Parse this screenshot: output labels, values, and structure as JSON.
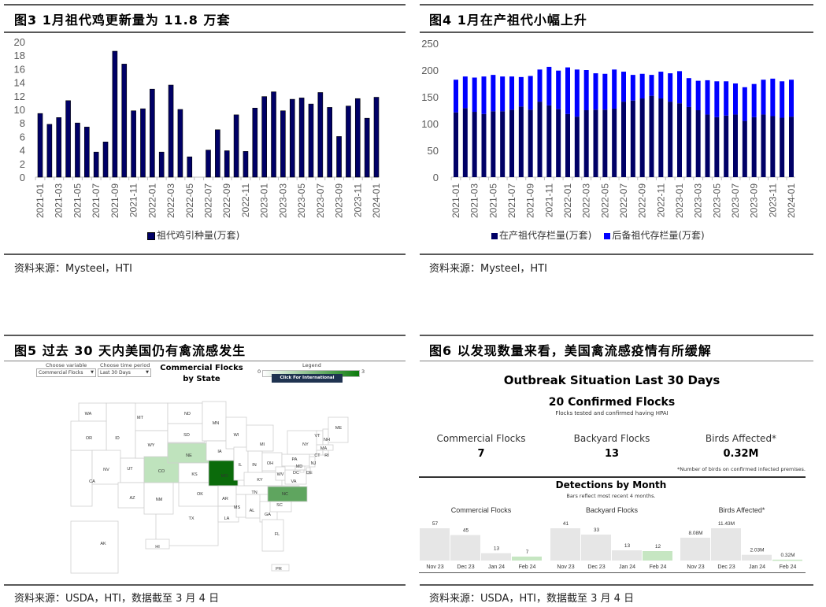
{
  "fig3": {
    "title": "图3  1月祖代鸡更新量为 11.8 万套",
    "legend": "祖代鸡引种量(万套)",
    "source": "资料来源：Mysteel，HTI"
  },
  "fig4": {
    "title": "图4  1月在产祖代小幅上升",
    "legend": [
      "在产祖代存栏量(万套)",
      "后备祖代存栏量(万套)"
    ],
    "source": "资料来源：Mysteel，HTI"
  },
  "fig5": {
    "title": "图5  过去 30 天内美国仍有禽流感发生",
    "source": "资料来源：USDA，HTI，数据截至 3 月 4 日",
    "choose_variable_label": "Choose variable",
    "choose_variable_value": "Commercial Flocks",
    "choose_period_label": "Choose time period",
    "choose_period_value": "Last 30 Days",
    "map_title_1": "Commercial Flocks",
    "map_title_2": "by State",
    "legend_label": "Legend",
    "legend_min": "0",
    "legend_max": "3",
    "export_button": "Click For International Exports"
  },
  "fig6": {
    "title": "图6  以发现数量来看，美国禽流感疫情有所缓解",
    "source": "资料来源：USDA，HTI，数据截至 3 月 4 日",
    "heading": "Outbreak Situation Last 30 Days",
    "confirmed": "20 Confirmed Flocks",
    "confirmed_sub": "Flocks tested and confirmed having HPAI",
    "stats": [
      {
        "label": "Commercial Flocks",
        "value": "7"
      },
      {
        "label": "Backyard Flocks",
        "value": "13"
      },
      {
        "label": "Birds Affected*",
        "value": "0.32M"
      }
    ],
    "footnote": "*Number of birds on confirmed infected premises.",
    "detections_title": "Detections by Month",
    "detections_sub": "Bars reflect most recent 4 months."
  },
  "chart_data": [
    {
      "type": "bar",
      "title": "1月祖代鸡更新量为 11.8 万套",
      "ylim": [
        0,
        20
      ],
      "yticks": [
        "0",
        "2",
        "4",
        "6",
        "8",
        "10",
        "12",
        "14",
        "16",
        "18",
        "20"
      ],
      "categories": [
        "2021-01",
        "2021-02",
        "2021-03",
        "2021-04",
        "2021-05",
        "2021-06",
        "2021-07",
        "2021-08",
        "2021-09",
        "2021-10",
        "2021-11",
        "2021-12",
        "2022-01",
        "2022-02",
        "2022-03",
        "2022-04",
        "2022-05",
        "2022-06",
        "2022-07",
        "2022-08",
        "2022-09",
        "2022-10",
        "2022-11",
        "2022-12",
        "2023-01",
        "2023-02",
        "2023-03",
        "2023-04",
        "2023-05",
        "2023-06",
        "2023-07",
        "2023-08",
        "2023-09",
        "2023-10",
        "2023-11",
        "2023-12",
        "2024-01"
      ],
      "series": [
        {
          "name": "祖代鸡引种量(万套)",
          "color": "#000066",
          "values": [
            9.4,
            7.8,
            8.8,
            11.3,
            8.0,
            7.4,
            3.7,
            5.2,
            18.6,
            16.7,
            9.8,
            10.1,
            13.0,
            3.7,
            13.6,
            10.0,
            3.0,
            0,
            4.0,
            7.0,
            3.9,
            9.2,
            3.8,
            10.2,
            11.9,
            12.6,
            9.8,
            11.5,
            11.7,
            10.8,
            12.5,
            10.3,
            6.0,
            10.5,
            11.6,
            8.7,
            11.8
          ]
        }
      ]
    },
    {
      "type": "bar",
      "stacked": true,
      "title": "1月在产祖代小幅上升",
      "ylim": [
        0,
        250
      ],
      "yticks": [
        "0",
        "50",
        "100",
        "150",
        "200",
        "250"
      ],
      "categories": [
        "2021-01",
        "2021-02",
        "2021-03",
        "2021-04",
        "2021-05",
        "2021-06",
        "2021-07",
        "2021-08",
        "2021-09",
        "2021-10",
        "2021-11",
        "2021-12",
        "2022-01",
        "2022-02",
        "2022-03",
        "2022-04",
        "2022-05",
        "2022-06",
        "2022-07",
        "2022-08",
        "2022-09",
        "2022-10",
        "2022-11",
        "2022-12",
        "2023-01",
        "2023-02",
        "2023-03",
        "2023-04",
        "2023-05",
        "2023-06",
        "2023-07",
        "2023-08",
        "2023-09",
        "2023-10",
        "2023-11",
        "2023-12",
        "2024-01"
      ],
      "series": [
        {
          "name": "在产祖代存栏量(万套)",
          "color": "#000066",
          "values": [
            121,
            129,
            122,
            118,
            123,
            123,
            126,
            132,
            126,
            141,
            134,
            127,
            118,
            113,
            125,
            126,
            126,
            128,
            141,
            143,
            147,
            152,
            147,
            141,
            138,
            131,
            125,
            117,
            112,
            115,
            117,
            105,
            112,
            117,
            114,
            111,
            113
          ]
        },
        {
          "name": "后备祖代存栏量(万套)",
          "color": "#0000ff",
          "values": [
            61,
            59,
            64,
            70,
            68,
            65,
            62,
            55,
            63,
            60,
            72,
            72,
            87,
            88,
            75,
            68,
            67,
            73,
            56,
            48,
            46,
            39,
            50,
            53,
            60,
            54,
            55,
            64,
            67,
            64,
            58,
            63,
            62,
            65,
            70,
            68,
            69
          ]
        }
      ]
    },
    {
      "type": "bar",
      "title": "Commercial Flocks",
      "categories": [
        "Nov 23",
        "Dec 23",
        "Jan 24",
        "Feb 24"
      ],
      "values": [
        57,
        45,
        13,
        7
      ],
      "labels": [
        "57",
        "45",
        "13",
        "7"
      ]
    },
    {
      "type": "bar",
      "title": "Backyard Flocks",
      "categories": [
        "Nov 23",
        "Dec 23",
        "Jan 24",
        "Feb 24"
      ],
      "values": [
        41,
        33,
        13,
        12
      ],
      "labels": [
        "41",
        "33",
        "13",
        "12"
      ]
    },
    {
      "type": "bar",
      "title": "Birds Affected*",
      "categories": [
        "Nov 23",
        "Dec 23",
        "Jan 24",
        "Feb 24"
      ],
      "values": [
        8.08,
        11.43,
        2.03,
        0.32
      ],
      "labels": [
        "8.08M",
        "11.43M",
        "2.03M",
        "0.32M"
      ]
    }
  ],
  "map": {
    "colors": {
      "0": "#ffffff",
      "1": "#bfe3bd",
      "2": "#5fa55f",
      "3": "#0b6b0b",
      "stroke": "#cfcfcf"
    },
    "states": {
      "WA": 0,
      "MT": 0,
      "ND": 0,
      "MN": 0,
      "OR": 0,
      "ID": 0,
      "SD": 0,
      "WY": 0,
      "WI": 0,
      "MI": 0,
      "NY": 0,
      "VT": 0,
      "NH": 0,
      "ME": 0,
      "MA": 0,
      "CT": 0,
      "RI": 0,
      "NE": 1,
      "IA": 0,
      "CO": 1,
      "NV": 0,
      "UT": 0,
      "CA": 0,
      "KS": 0,
      "MO": 3,
      "IL": 0,
      "IN": 0,
      "OH": 0,
      "PA": 0,
      "NJ": 0,
      "MD": 0,
      "DC": 0,
      "DE": 0,
      "WV": 0,
      "VA": 0,
      "KY": 0,
      "TN": 0,
      "NC": 2,
      "SC": 0,
      "OK": 0,
      "AR": 0,
      "AZ": 0,
      "NM": 0,
      "MS": 0,
      "AL": 0,
      "GA": 0,
      "TX": 0,
      "LA": 0,
      "FL": 0,
      "AK": 0,
      "HI": 0,
      "PR": 0
    }
  }
}
